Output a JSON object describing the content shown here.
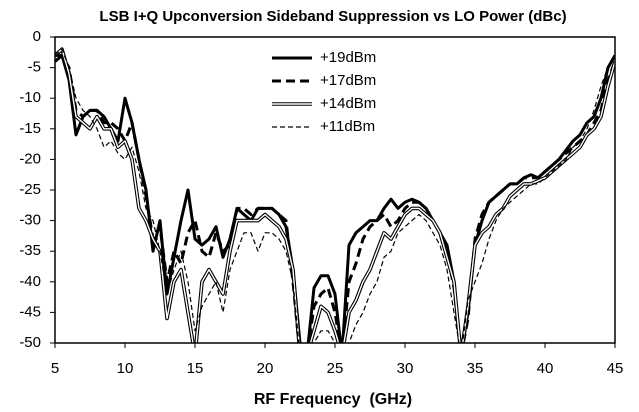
{
  "chart_data": {
    "type": "line",
    "title": "LSB I+Q Upconversion Sideband Suppression vs LO Power (dBc)",
    "x_label": "RF Frequency  (GHz)",
    "x": [
      5,
      5.5,
      6,
      6.5,
      7,
      7.5,
      8,
      8.5,
      9,
      9.5,
      10,
      10.5,
      11,
      11.5,
      12,
      12.5,
      13,
      13.5,
      14,
      14.5,
      15,
      15.5,
      16,
      16.5,
      17,
      17.5,
      18,
      18.5,
      19,
      19.5,
      20,
      20.5,
      21,
      21.5,
      22,
      22.5,
      23,
      23.5,
      24,
      24.5,
      25,
      25.5,
      26,
      26.5,
      27,
      27.5,
      28,
      28.5,
      29,
      29.5,
      30,
      30.5,
      31,
      31.5,
      32,
      32.5,
      33,
      33.5,
      34,
      34.5,
      35,
      35.5,
      36,
      36.5,
      37,
      37.5,
      38,
      38.5,
      39,
      39.5,
      40,
      40.5,
      41,
      41.5,
      42,
      42.5,
      43,
      43.5,
      44,
      44.5,
      45
    ],
    "series": [
      {
        "name": "+19dBm",
        "color": "#000000",
        "style": "solid",
        "values": [
          -4,
          -3,
          -7,
          -16,
          -13,
          -12,
          -12,
          -13,
          -15,
          -17,
          -10,
          -14,
          -20,
          -25,
          -35,
          -30,
          -42,
          -36,
          -30,
          -25,
          -33,
          -34,
          -33,
          -31,
          -36,
          -33,
          -28,
          -29,
          -30,
          -28,
          -28,
          -28,
          -29,
          -31,
          -38,
          -50,
          -52,
          -41,
          -39,
          -39,
          -42,
          -52,
          -34,
          -32,
          -31,
          -30,
          -30,
          -28,
          -26.5,
          -28,
          -27,
          -26.5,
          -27,
          -28,
          -30,
          -32,
          -34,
          -40,
          -52,
          -45,
          -34,
          -30,
          -27,
          -26,
          -25,
          -24,
          -24,
          -23,
          -22.5,
          -23,
          -22,
          -21,
          -20,
          -18.5,
          -17,
          -16,
          -14,
          -13,
          -10,
          -5,
          -3
        ]
      },
      {
        "name": "+17dBm",
        "color": "#000000",
        "style": "dashed",
        "values": [
          -3,
          -3,
          -5,
          -12,
          -13,
          -12,
          -12,
          -14,
          -14,
          -15,
          -17,
          -14,
          -20,
          -26,
          -33,
          -31,
          -40,
          -35,
          -37,
          -32,
          -30,
          -35,
          -36,
          -32,
          -35,
          -34,
          -28,
          -28,
          -29,
          -28,
          -28,
          -28,
          -29,
          -30,
          -40,
          -52,
          -52,
          -44,
          -42,
          -41,
          -45,
          -52,
          -40,
          -37,
          -33,
          -31,
          -30,
          -29,
          -31,
          -30,
          -28,
          -27,
          -27,
          -28,
          -30,
          -32,
          -35,
          -41,
          -52,
          -46,
          -33,
          -29,
          -27,
          -26,
          -25,
          -24,
          -24,
          -23,
          -23,
          -23,
          -22,
          -21,
          -20,
          -19,
          -18,
          -17,
          -16,
          -14,
          -12,
          -7,
          -4
        ]
      },
      {
        "name": "+14dBm",
        "color": "#000000",
        "style": "double",
        "values": [
          -3,
          -2,
          -6,
          -13,
          -14,
          -15,
          -13,
          -15,
          -15,
          -18,
          -17,
          -20,
          -28,
          -30,
          -33,
          -35,
          -46,
          -40,
          -38,
          -45,
          -52,
          -40,
          -38,
          -40,
          -42,
          -35,
          -30,
          -30,
          -30,
          -30,
          -29,
          -30,
          -31,
          -33,
          -38,
          -52,
          -52,
          -48,
          -44,
          -45,
          -48,
          -52,
          -45,
          -43,
          -40,
          -38,
          -35,
          -32,
          -33,
          -31,
          -29,
          -28,
          -28,
          -29,
          -30,
          -32,
          -36,
          -40,
          -52,
          -44,
          -34,
          -32,
          -31,
          -29,
          -28,
          -26,
          -25,
          -24,
          -24,
          -23.5,
          -23,
          -22,
          -21,
          -20,
          -19,
          -18,
          -16,
          -15,
          -13,
          -8,
          -4
        ]
      },
      {
        "name": "+11dBm",
        "color": "#000000",
        "style": "thin-dashed",
        "values": [
          -3,
          -2,
          -5,
          -10,
          -12,
          -13,
          -15,
          -18,
          -17,
          -19,
          -20,
          -18,
          -22,
          -28,
          -30,
          -35,
          -42,
          -38,
          -35,
          -40,
          -48,
          -44,
          -42,
          -40,
          -45,
          -38,
          -35,
          -32,
          -32,
          -35,
          -32,
          -32,
          -33,
          -35,
          -40,
          -52,
          -52,
          -50,
          -48,
          -48,
          -50,
          -52,
          -50,
          -47,
          -45,
          -42,
          -40,
          -36,
          -35,
          -32,
          -31,
          -30,
          -29,
          -30,
          -32,
          -34,
          -38,
          -45,
          -52,
          -43,
          -40,
          -37,
          -33,
          -30,
          -28,
          -27,
          -26,
          -25,
          -24,
          -24,
          -23,
          -22,
          -21,
          -20,
          -18,
          -17,
          -15,
          -12,
          -8,
          -5,
          -3
        ]
      }
    ],
    "xlim": [
      5,
      45
    ],
    "xticks": [
      5,
      10,
      15,
      20,
      25,
      30,
      35,
      40,
      45
    ],
    "ylim": [
      -50,
      0
    ],
    "yticks": [
      0,
      -5,
      -10,
      -15,
      -20,
      -25,
      -30,
      -35,
      -40,
      -45,
      -50
    ],
    "grid": false,
    "legend_position": "top"
  }
}
